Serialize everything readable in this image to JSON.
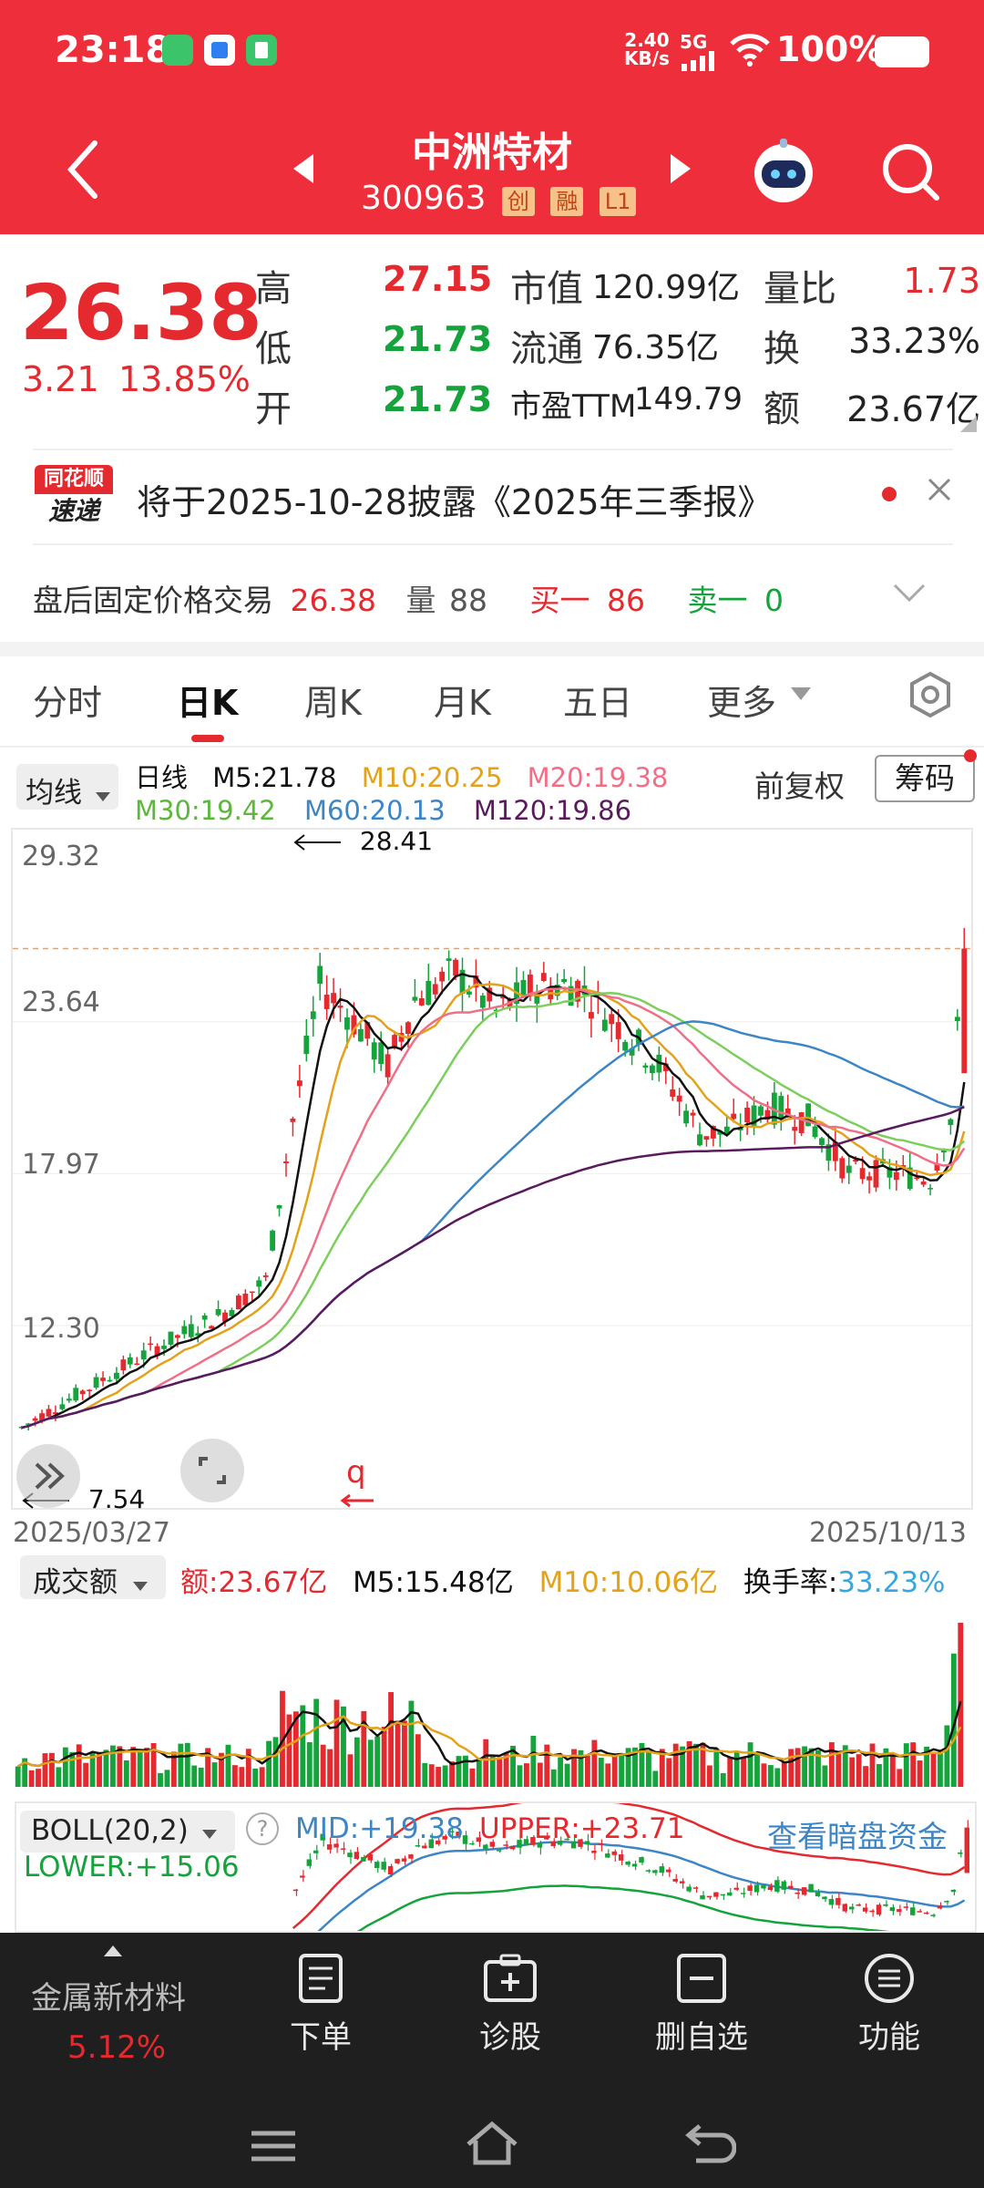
{
  "status": {
    "time": "23:18",
    "net_speed_top": "2.40",
    "net_speed_bottom": "KB/s",
    "network": "5G",
    "battery": "100%"
  },
  "nav": {
    "title": "中洲特材",
    "code": "300963",
    "tags": [
      "创",
      "融",
      "L1"
    ]
  },
  "quote": {
    "price": "26.38",
    "change": "3.21",
    "change_pct": "13.85%",
    "high_label": "高",
    "high": "27.15",
    "low_label": "低",
    "low": "21.73",
    "open_label": "开",
    "open": "21.73",
    "mktcap_label": "市值",
    "mktcap": "120.99亿",
    "float_label": "流通",
    "float": "76.35亿",
    "pe_label": "市盈TTM",
    "pe": "149.79",
    "vol_ratio_label": "量比",
    "vol_ratio": "1.73",
    "turnover_label": "换",
    "turnover": "33.23%",
    "amount_label": "额",
    "amount": "23.67亿"
  },
  "notice": {
    "badge_top": "同花顺",
    "badge_bottom": "速递",
    "text": "将于2025-10-28披露《2025年三季报》"
  },
  "after_hours": {
    "label": "盘后固定价格交易",
    "price": "26.38",
    "vol_label": "量",
    "vol": "88",
    "buy_label": "买一",
    "buy": "86",
    "sell_label": "卖一",
    "sell": "0"
  },
  "tabs": [
    "分时",
    "日K",
    "周K",
    "月K",
    "五日",
    "更多"
  ],
  "active_tab": "日K",
  "ma_legend": {
    "selector": "均线",
    "period": "日线",
    "m5": "M5:21.78",
    "m10": "M10:20.25",
    "m20": "M20:19.38",
    "m30": "M30:19.42",
    "m60": "M60:20.13",
    "m120": "M120:19.86",
    "adjust": "前复权",
    "chips": "筹码"
  },
  "colors": {
    "brand_red": "#ee2f3b",
    "up": "#e52a2f",
    "down": "#15a33c",
    "m5": "#111111",
    "m10": "#e3a21a",
    "m20": "#ef6f87",
    "m30": "#7ccf5c",
    "m60": "#3d86c6",
    "m120": "#5b1a5e"
  },
  "kline": {
    "y_ticks": [
      "29.32",
      "23.64",
      "17.97",
      "12.30"
    ],
    "high_marker": "28.41",
    "low_marker": "7.54",
    "date_start": "2025/03/27",
    "date_end": "2025/10/13"
  },
  "volume": {
    "selector": "成交额",
    "amount": "额:23.67亿",
    "m5": "M5:15.48亿",
    "m10": "M10:10.06亿",
    "turnover_label": "换手率:",
    "turnover": "33.23%"
  },
  "boll": {
    "selector": "BOLL(20,2)",
    "mid": "MID:+19.38",
    "upper": "UPPER:+23.71",
    "lower": "LOWER:+15.06",
    "link": "查看暗盘资金"
  },
  "bottom": {
    "sector": "金属新材料",
    "sector_pct": "5.12%",
    "buttons": [
      "下单",
      "诊股",
      "删自选",
      "功能"
    ]
  }
}
